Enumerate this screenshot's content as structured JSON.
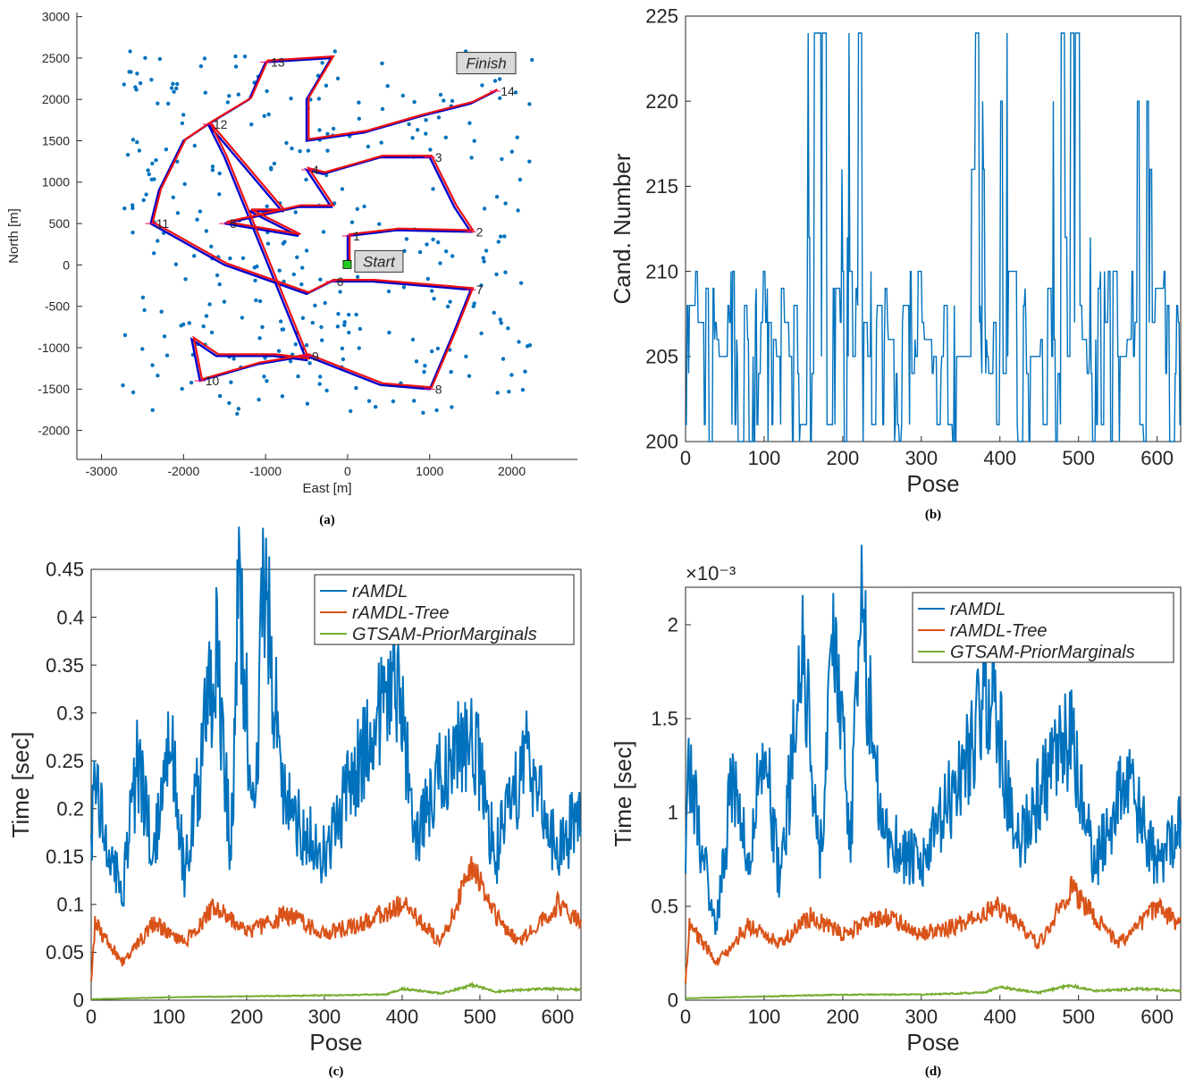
{
  "chart_data": [
    {
      "panel": "a",
      "caption": "(a)",
      "type": "scatter",
      "xlabel": "East [m]",
      "ylabel": "North [m]",
      "xlim": [
        -3300,
        2800
      ],
      "ylim": [
        -2350,
        3050
      ],
      "xticks": [
        -3000,
        -2000,
        -1000,
        0,
        1000,
        2000
      ],
      "yticks": [
        -2000,
        -1500,
        -1000,
        -500,
        0,
        500,
        1000,
        1500,
        2000,
        2500,
        3000
      ],
      "annotations": {
        "start": "Start",
        "finish": "Finish",
        "start_point": [
          0,
          0
        ],
        "finish_point": [
          1700,
          2050
        ]
      },
      "waypoints": [
        {
          "label": "1",
          "x": 0,
          "y": 350
        },
        {
          "label": "2",
          "x": 1500,
          "y": 400
        },
        {
          "label": "3",
          "x": 1000,
          "y": 1300
        },
        {
          "label": "4",
          "x": -500,
          "y": 1150
        },
        {
          "label": "5",
          "x": -1500,
          "y": 500
        },
        {
          "label": "6",
          "x": -200,
          "y": -200
        },
        {
          "label": "7",
          "x": 1500,
          "y": -300
        },
        {
          "label": "8",
          "x": 1000,
          "y": -1500
        },
        {
          "label": "9",
          "x": -500,
          "y": -1100
        },
        {
          "label": "10",
          "x": -1800,
          "y": -1400
        },
        {
          "label": "11",
          "x": -2400,
          "y": 500
        },
        {
          "label": "12",
          "x": -1700,
          "y": 1700
        },
        {
          "label": "13",
          "x": -1000,
          "y": 2450
        },
        {
          "label": "14",
          "x": 1800,
          "y": 2100
        }
      ],
      "series": [
        {
          "name": "",
          "color": "#0000cc"
        },
        {
          "name": "",
          "color": "#ee1111"
        },
        {
          "name": "",
          "color": "#0072bd"
        }
      ]
    },
    {
      "panel": "b",
      "caption": "(b)",
      "type": "line",
      "xlabel": "Pose",
      "ylabel": "Cand. Number",
      "xlim": [
        0,
        630
      ],
      "ylim": [
        200,
        225
      ],
      "xticks": [
        0,
        100,
        200,
        300,
        400,
        500,
        600
      ],
      "yticks": [
        200,
        205,
        210,
        215,
        220,
        225
      ],
      "series": [
        {
          "name": "",
          "color": "#0072bd"
        }
      ]
    },
    {
      "panel": "c",
      "caption": "(c)",
      "type": "line",
      "xlabel": "Pose",
      "ylabel": "Time [sec]",
      "xlim": [
        0,
        630
      ],
      "ylim": [
        0,
        0.45
      ],
      "xticks": [
        0,
        100,
        200,
        300,
        400,
        500,
        600
      ],
      "yticks": [
        0,
        0.05,
        0.1,
        0.15,
        0.2,
        0.25,
        0.3,
        0.35,
        0.4,
        0.45
      ],
      "ytick_labels": [
        "0",
        "0.05",
        "0.1",
        "0.15",
        "0.2",
        "0.25",
        "0.3",
        "0.35",
        "0.4",
        "0.45"
      ],
      "legend_position": "top-right",
      "series": [
        {
          "name": "rAMDL",
          "color": "#0072bd",
          "x": [
            0,
            5,
            20,
            40,
            60,
            80,
            100,
            120,
            140,
            160,
            180,
            190,
            210,
            222,
            250,
            300,
            350,
            390,
            420,
            450,
            490,
            520,
            560,
            600,
            630
          ],
          "values": [
            0.17,
            0.25,
            0.16,
            0.11,
            0.25,
            0.15,
            0.29,
            0.13,
            0.24,
            0.37,
            0.15,
            0.44,
            0.17,
            0.44,
            0.2,
            0.15,
            0.26,
            0.35,
            0.17,
            0.24,
            0.28,
            0.15,
            0.26,
            0.15,
            0.2
          ]
        },
        {
          "name": "rAMDL-Tree",
          "color": "#d95319",
          "x": [
            0,
            5,
            40,
            80,
            120,
            160,
            200,
            250,
            300,
            350,
            400,
            450,
            490,
            520,
            550,
            600,
            630
          ],
          "values": [
            0.02,
            0.08,
            0.04,
            0.08,
            0.06,
            0.1,
            0.07,
            0.09,
            0.07,
            0.08,
            0.1,
            0.06,
            0.14,
            0.09,
            0.06,
            0.1,
            0.08
          ]
        },
        {
          "name": "GTSAM-PriorMarginals",
          "color": "#77ac30",
          "x": [
            0,
            100,
            200,
            300,
            380,
            400,
            450,
            490,
            520,
            580,
            630
          ],
          "values": [
            0.001,
            0.003,
            0.004,
            0.005,
            0.006,
            0.012,
            0.007,
            0.016,
            0.009,
            0.012,
            0.011
          ]
        }
      ]
    },
    {
      "panel": "d",
      "caption": "(d)",
      "type": "line",
      "xlabel": "Pose",
      "ylabel": "Time [sec]",
      "exponent_label": "×10⁻³",
      "xlim": [
        0,
        630
      ],
      "ylim": [
        0,
        0.0022
      ],
      "xticks": [
        0,
        100,
        200,
        300,
        400,
        500,
        600
      ],
      "yticks": [
        0,
        0.0005,
        0.001,
        0.0015,
        0.002
      ],
      "ytick_labels": [
        "0",
        "0.5",
        "1",
        "1.5",
        "2"
      ],
      "legend_position": "top-right",
      "series": [
        {
          "name": "rAMDL",
          "color": "#0072bd",
          "x": [
            0,
            5,
            20,
            40,
            60,
            80,
            100,
            120,
            150,
            170,
            190,
            210,
            222,
            250,
            300,
            350,
            390,
            420,
            450,
            490,
            520,
            560,
            600,
            630
          ],
          "values": [
            0.0008,
            0.00125,
            0.0008,
            0.0004,
            0.0012,
            0.0007,
            0.0014,
            0.0006,
            0.0019,
            0.0007,
            0.002,
            0.0008,
            0.0021,
            0.0009,
            0.0007,
            0.0012,
            0.0017,
            0.0008,
            0.0011,
            0.0014,
            0.0007,
            0.0012,
            0.0007,
            0.001
          ]
        },
        {
          "name": "rAMDL-Tree",
          "color": "#d95319",
          "x": [
            0,
            5,
            40,
            80,
            120,
            160,
            200,
            250,
            300,
            350,
            400,
            450,
            490,
            520,
            550,
            600,
            630
          ],
          "values": [
            0.0001,
            0.0004,
            0.0002,
            0.0004,
            0.0003,
            0.00045,
            0.00035,
            0.00045,
            0.00035,
            0.0004,
            0.0005,
            0.0003,
            0.0006,
            0.00045,
            0.0003,
            0.0005,
            0.0004
          ]
        },
        {
          "name": "GTSAM-PriorMarginals",
          "color": "#77ac30",
          "x": [
            0,
            100,
            200,
            300,
            380,
            400,
            450,
            490,
            520,
            580,
            630
          ],
          "values": [
            1e-05,
            2e-05,
            3e-05,
            3e-05,
            4e-05,
            7e-05,
            4e-05,
            8e-05,
            5e-05,
            6e-05,
            5e-05
          ]
        }
      ]
    }
  ]
}
